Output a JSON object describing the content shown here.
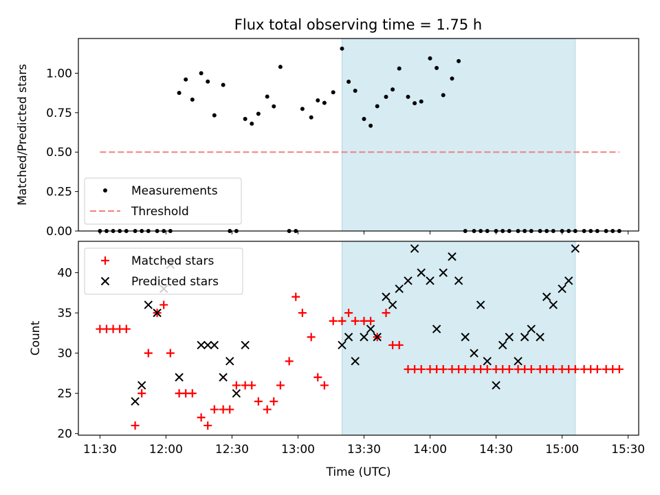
{
  "title": "Flux total observing time = 1.75 h",
  "colors": {
    "measurement": "#000000",
    "threshold": "#f08080",
    "matched": "#ff0000",
    "predicted": "#000000",
    "span_fill": "#add8e6"
  },
  "chart_data": [
    {
      "type": "scatter",
      "ylabel": "Matched/Predicted stars",
      "ylim": [
        0,
        1.22
      ],
      "yticks": [
        0.0,
        0.25,
        0.5,
        0.75,
        1.0
      ],
      "ytick_labels": [
        "0.00",
        "0.25",
        "0.50",
        "0.75",
        "1.00"
      ],
      "highlight_span": [
        "13:20",
        "15:06"
      ],
      "legend_position": "lower-left",
      "series": [
        {
          "name": "Measurements",
          "marker": "dot",
          "x": [
            "11:30",
            "11:33",
            "11:36",
            "11:39",
            "11:42",
            "11:46",
            "11:49",
            "11:52",
            "11:56",
            "11:59",
            "12:02",
            "12:06",
            "12:09",
            "12:12",
            "12:16",
            "12:19",
            "12:22",
            "12:26",
            "12:29",
            "12:32",
            "12:36",
            "12:39",
            "12:42",
            "12:46",
            "12:49",
            "12:52",
            "12:56",
            "12:59",
            "13:02",
            "13:06",
            "13:09",
            "13:12",
            "13:16",
            "13:20",
            "13:23",
            "13:26",
            "13:30",
            "13:33",
            "13:36",
            "13:40",
            "13:43",
            "13:46",
            "13:50",
            "13:53",
            "13:56",
            "14:00",
            "14:03",
            "14:06",
            "14:10",
            "14:13",
            "14:16",
            "14:20",
            "14:23",
            "14:26",
            "14:30",
            "14:33",
            "14:36",
            "14:40",
            "14:43",
            "14:46",
            "14:50",
            "14:53",
            "14:56",
            "15:00",
            "15:03",
            "15:06",
            "15:10",
            "15:13",
            "15:16",
            "15:20",
            "15:23",
            "15:26"
          ],
          "y": [
            0,
            0,
            0,
            0,
            0,
            0,
            0,
            0,
            0,
            0,
            0,
            0.875,
            0.96,
            0.833,
            1.0,
            0.947,
            0.733,
            0.926,
            0,
            0,
            0.71,
            0.68,
            0.743,
            0.852,
            0.79,
            1.04,
            0,
            0,
            0.774,
            0.72,
            0.828,
            0.812,
            0.879,
            1.156,
            0.946,
            0.889,
            0.71,
            0.667,
            0.791,
            0.85,
            0.897,
            1.03,
            0.85,
            0.81,
            0.821,
            1.094,
            1.033,
            0.861,
            0.966,
            1.077,
            0,
            0,
            0,
            0,
            0,
            0,
            0,
            0,
            0,
            0,
            0,
            0,
            0,
            0,
            0,
            0,
            0,
            0,
            0,
            0,
            0,
            0
          ],
          "x_shown": [
            "11:30",
            "11:33",
            "11:36",
            "11:39",
            "11:42",
            "11:46",
            "11:49",
            "11:52",
            "11:56",
            "11:59",
            "12:02",
            "12:06",
            "12:09",
            "12:12",
            "12:16",
            "12:19",
            "12:22",
            "12:26",
            "12:29",
            "12:32",
            "12:36",
            "12:39",
            "12:42",
            "12:46",
            "12:49",
            "12:52",
            "12:56",
            "12:59",
            "13:02",
            "13:06",
            "13:09",
            "13:12",
            "13:16",
            "13:20",
            "13:23",
            "13:26",
            "13:30",
            "13:33",
            "13:36",
            "13:40",
            "13:43",
            "13:46",
            "13:50",
            "13:53",
            "13:56",
            "14:00",
            "14:03",
            "14:06",
            "14:10",
            "14:13",
            "14:16",
            "14:20",
            "14:23",
            "14:26",
            "14:30",
            "14:33",
            "14:36",
            "14:40",
            "14:43",
            "14:46",
            "14:50",
            "14:53",
            "14:56",
            "15:00",
            "15:03",
            "15:06",
            "15:10",
            "15:13",
            "15:16",
            "15:20",
            "15:23",
            "15:26"
          ]
        },
        {
          "name": "Threshold",
          "marker": "dashed-line",
          "x": [
            "11:30",
            "15:26"
          ],
          "y": [
            0.5,
            0.5
          ]
        }
      ]
    },
    {
      "type": "scatter",
      "xlabel": "Time (UTC)",
      "ylabel": "Count",
      "ylim": [
        19.8,
        43.9
      ],
      "yticks": [
        20,
        25,
        30,
        35,
        40
      ],
      "xticks": [
        "11:30",
        "12:00",
        "12:30",
        "13:00",
        "13:30",
        "14:00",
        "14:30",
        "15:00",
        "15:30"
      ],
      "highlight_span": [
        "13:20",
        "15:06"
      ],
      "legend_position": "upper-left",
      "series": [
        {
          "name": "Matched stars",
          "marker": "plus",
          "x": [
            "11:30",
            "11:33",
            "11:36",
            "11:39",
            "11:42",
            "11:46",
            "11:49",
            "11:52",
            "11:56",
            "11:59",
            "12:02",
            "12:06",
            "12:09",
            "12:12",
            "12:16",
            "12:19",
            "12:22",
            "12:26",
            "12:29",
            "12:32",
            "12:36",
            "12:39",
            "12:42",
            "12:46",
            "12:49",
            "12:52",
            "12:56",
            "12:59",
            "13:02",
            "13:06",
            "13:09",
            "13:12",
            "13:16",
            "13:20",
            "13:23",
            "13:26",
            "13:30",
            "13:33",
            "13:36",
            "13:40",
            "13:43",
            "13:46",
            "13:50",
            "13:53",
            "13:56",
            "14:00",
            "14:03",
            "14:06",
            "14:10",
            "14:13",
            "14:16",
            "14:20",
            "14:23",
            "14:26",
            "14:30",
            "14:33",
            "14:36",
            "14:40",
            "14:43",
            "14:46",
            "14:50",
            "14:53",
            "14:56",
            "15:00",
            "15:03",
            "15:06",
            "15:10",
            "15:13",
            "15:16",
            "15:20",
            "15:23",
            "15:26"
          ],
          "y": [
            33,
            33,
            33,
            33,
            33,
            21,
            25,
            30,
            35,
            36,
            30,
            25,
            25,
            25,
            22,
            21,
            23,
            23,
            23,
            26,
            26,
            26,
            24,
            23,
            24,
            26,
            29,
            37,
            35,
            32,
            27,
            26,
            34,
            34,
            35,
            34,
            34,
            34,
            32,
            35,
            31,
            31,
            28,
            28,
            28,
            28,
            28,
            28,
            28,
            28,
            28,
            28,
            28,
            28,
            28,
            28,
            28,
            28,
            28,
            28,
            28,
            28,
            28,
            28,
            28,
            28,
            28,
            28,
            28,
            28,
            28,
            28
          ]
        },
        {
          "name": "Predicted stars",
          "marker": "x",
          "x": [
            "11:46",
            "11:49",
            "11:52",
            "11:56",
            "11:59",
            "12:02",
            "12:06",
            "12:16",
            "12:19",
            "12:22",
            "12:26",
            "12:29",
            "12:32",
            "12:36",
            "13:20",
            "13:23",
            "13:26",
            "13:30",
            "13:33",
            "13:36",
            "13:40",
            "13:43",
            "13:46",
            "13:50",
            "13:53",
            "13:56",
            "14:00",
            "14:03",
            "14:06",
            "14:10",
            "14:13",
            "14:16",
            "14:20",
            "14:23",
            "14:26",
            "14:30",
            "14:33",
            "14:36",
            "14:40",
            "14:43",
            "14:46",
            "14:50",
            "14:53",
            "14:56",
            "15:00",
            "15:03",
            "15:06"
          ],
          "y": [
            24,
            26,
            36,
            35,
            38,
            41,
            27,
            31,
            31,
            31,
            27,
            29,
            25,
            31,
            31,
            32,
            29,
            32,
            33,
            32,
            37,
            36,
            38,
            39,
            43,
            40,
            39,
            33,
            40,
            42,
            39,
            32,
            30,
            36,
            29,
            26,
            31,
            32,
            29,
            32,
            33,
            32,
            37,
            36,
            38,
            39,
            43
          ]
        }
      ]
    }
  ],
  "legend_top": [
    "Measurements",
    "Threshold"
  ],
  "legend_bottom": [
    "Matched stars",
    "Predicted stars"
  ]
}
